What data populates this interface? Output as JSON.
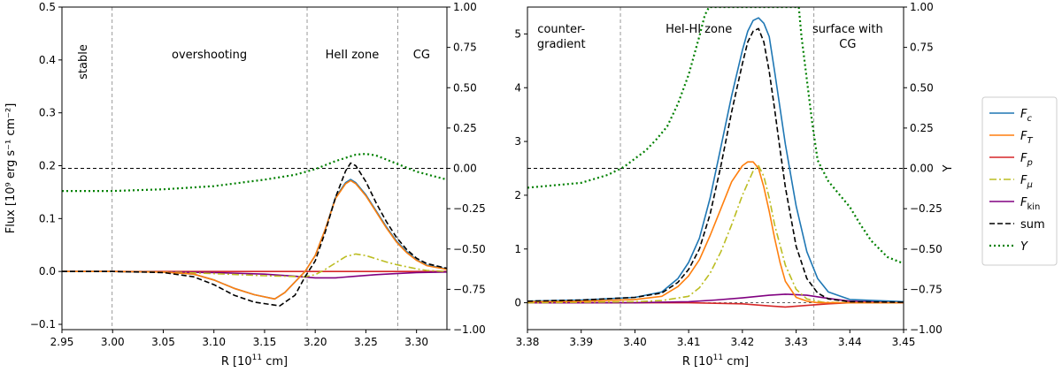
{
  "colors": {
    "Fc": "#1f77b4",
    "FT": "#ff7f0e",
    "Fp": "#d62728",
    "Fmu": "#bcbd22",
    "Fkin": "#800080",
    "sum": "#000000",
    "Y": "#008000",
    "guide": "#999999"
  },
  "legend": {
    "entries": [
      {
        "key": "Fc",
        "main": "F",
        "sub": "c",
        "style": "solid"
      },
      {
        "key": "FT",
        "main": "F",
        "sub": "T",
        "style": "solid"
      },
      {
        "key": "Fp",
        "main": "F",
        "sub": "p",
        "style": "solid"
      },
      {
        "key": "Fmu",
        "main": "F",
        "sub": "μ",
        "style": "dashdot"
      },
      {
        "key": "Fkin",
        "main": "F",
        "sub": "kin",
        "style": "solid"
      },
      {
        "key": "sum",
        "main": "sum",
        "sub": "",
        "style": "dashed"
      },
      {
        "key": "Y",
        "main": "Y",
        "sub": "",
        "style": "dotted"
      }
    ]
  },
  "chart_data": [
    {
      "type": "line",
      "panel": "left",
      "xlabel_main": "R [10",
      "xlabel_sup": "11",
      "xlabel_tail": " cm]",
      "ylabel": "Flux [10⁹ erg s⁻¹ cm⁻²]",
      "xlim": [
        2.95,
        3.33
      ],
      "ylim": [
        -0.11,
        0.5
      ],
      "y2lim": [
        -1.0,
        1.0
      ],
      "xticks": [
        2.95,
        3.0,
        3.05,
        3.1,
        3.15,
        3.2,
        3.25,
        3.3
      ],
      "xtick_labels": [
        "2.95",
        "3.00",
        "3.05",
        "3.10",
        "3.15",
        "3.20",
        "3.25",
        "3.30"
      ],
      "yticks": [
        -0.1,
        0.0,
        0.1,
        0.2,
        0.3,
        0.4,
        0.5
      ],
      "ytick_labels": [
        "−0.1",
        "0.0",
        "0.1",
        "0.2",
        "0.3",
        "0.4",
        "0.5"
      ],
      "y2ticks": [
        -1.0,
        -0.75,
        -0.5,
        -0.25,
        0.0,
        0.25,
        0.5,
        0.75,
        1.0
      ],
      "y2tick_labels": [
        "−1.00",
        "−0.75",
        "−0.50",
        "−0.25",
        "0.00",
        "0.25",
        "0.50",
        "0.75",
        "1.00"
      ],
      "vlines": [
        2.9995,
        3.192,
        3.2815
      ],
      "zones": [
        {
          "label": "stable",
          "x": 2.9745,
          "rotated": true
        },
        {
          "label": "overshooting",
          "x": 3.0955,
          "rotated": false
        },
        {
          "label": "HeII zone",
          "x": 3.2365,
          "rotated": false
        },
        {
          "label": "CG",
          "x": 3.305,
          "rotated": false
        }
      ],
      "series": [
        {
          "name": "Fc",
          "axis": "left",
          "x": [
            2.95,
            3.0,
            3.05,
            3.08,
            3.1,
            3.12,
            3.14,
            3.16,
            3.17,
            3.18,
            3.19,
            3.2,
            3.21,
            3.22,
            3.23,
            3.235,
            3.24,
            3.25,
            3.26,
            3.27,
            3.28,
            3.29,
            3.3,
            3.31,
            3.33
          ],
          "y": [
            0,
            0,
            -0.001,
            -0.005,
            -0.016,
            -0.032,
            -0.044,
            -0.052,
            -0.04,
            -0.02,
            0.0,
            0.03,
            0.08,
            0.14,
            0.168,
            0.174,
            0.168,
            0.145,
            0.115,
            0.085,
            0.058,
            0.038,
            0.022,
            0.012,
            0.005
          ]
        },
        {
          "name": "FT",
          "axis": "left",
          "x": [
            2.95,
            3.0,
            3.05,
            3.08,
            3.1,
            3.12,
            3.14,
            3.16,
            3.17,
            3.18,
            3.19,
            3.2,
            3.21,
            3.22,
            3.23,
            3.235,
            3.24,
            3.25,
            3.26,
            3.27,
            3.28,
            3.29,
            3.3,
            3.31,
            3.33
          ],
          "y": [
            0,
            0,
            -0.001,
            -0.005,
            -0.016,
            -0.032,
            -0.044,
            -0.052,
            -0.04,
            -0.02,
            0.0,
            0.03,
            0.08,
            0.138,
            0.166,
            0.172,
            0.166,
            0.143,
            0.113,
            0.083,
            0.056,
            0.036,
            0.021,
            0.011,
            0.004
          ]
        },
        {
          "name": "Fp",
          "axis": "left",
          "x": [
            2.95,
            3.2,
            3.25,
            3.33
          ],
          "y": [
            0,
            0,
            0,
            0
          ]
        },
        {
          "name": "Fmu",
          "axis": "left",
          "x": [
            2.95,
            3.0,
            3.05,
            3.1,
            3.15,
            3.19,
            3.2,
            3.21,
            3.22,
            3.23,
            3.24,
            3.25,
            3.26,
            3.27,
            3.28,
            3.29,
            3.3,
            3.31,
            3.33
          ],
          "y": [
            0,
            0,
            -0.001,
            -0.004,
            -0.008,
            -0.01,
            -0.006,
            0.004,
            0.016,
            0.028,
            0.033,
            0.03,
            0.024,
            0.018,
            0.013,
            0.009,
            0.005,
            0.002,
            0.0
          ]
        },
        {
          "name": "Fkin",
          "axis": "left",
          "x": [
            2.95,
            3.0,
            3.05,
            3.1,
            3.15,
            3.18,
            3.2,
            3.22,
            3.24,
            3.26,
            3.28,
            3.3,
            3.33
          ],
          "y": [
            0,
            0,
            -0.001,
            -0.002,
            -0.005,
            -0.009,
            -0.012,
            -0.012,
            -0.009,
            -0.006,
            -0.004,
            -0.002,
            -0.001
          ]
        },
        {
          "name": "sum",
          "axis": "left",
          "x": [
            2.95,
            3.0,
            3.05,
            3.08,
            3.1,
            3.12,
            3.14,
            3.165,
            3.18,
            3.19,
            3.2,
            3.21,
            3.22,
            3.23,
            3.235,
            3.24,
            3.25,
            3.26,
            3.27,
            3.28,
            3.29,
            3.3,
            3.31,
            3.33
          ],
          "y": [
            0,
            0,
            -0.002,
            -0.01,
            -0.025,
            -0.045,
            -0.058,
            -0.065,
            -0.045,
            -0.01,
            0.02,
            0.075,
            0.14,
            0.19,
            0.205,
            0.2,
            0.17,
            0.13,
            0.095,
            0.065,
            0.042,
            0.025,
            0.015,
            0.006
          ]
        },
        {
          "name": "Y",
          "axis": "right",
          "x": [
            2.95,
            3.0,
            3.05,
            3.1,
            3.15,
            3.18,
            3.2,
            3.22,
            3.24,
            3.25,
            3.26,
            3.28,
            3.3,
            3.33
          ],
          "y": [
            -0.14,
            -0.14,
            -0.13,
            -0.11,
            -0.07,
            -0.04,
            -0.005,
            0.045,
            0.085,
            0.09,
            0.08,
            0.03,
            -0.02,
            -0.07
          ]
        }
      ]
    },
    {
      "type": "line",
      "panel": "right",
      "xlabel_main": "R [10",
      "xlabel_sup": "11",
      "xlabel_tail": " cm]",
      "y2label": "Y",
      "xlim": [
        3.38,
        3.45
      ],
      "ylim": [
        -0.5,
        5.5
      ],
      "y2lim": [
        -1.0,
        1.0
      ],
      "xticks": [
        3.38,
        3.39,
        3.4,
        3.41,
        3.42,
        3.43,
        3.44,
        3.45
      ],
      "xtick_labels": [
        "3.38",
        "3.39",
        "3.40",
        "3.41",
        "3.42",
        "3.43",
        "3.44",
        "3.45"
      ],
      "yticks": [
        0,
        1,
        2,
        3,
        4,
        5
      ],
      "ytick_labels": [
        "0",
        "1",
        "2",
        "3",
        "4",
        "5"
      ],
      "y2ticks": [
        -1.0,
        -0.75,
        -0.5,
        -0.25,
        0.0,
        0.25,
        0.5,
        0.75,
        1.0
      ],
      "y2tick_labels": [
        "−1.00",
        "−0.75",
        "−0.50",
        "−0.25",
        "0.00",
        "0.25",
        "0.50",
        "0.75",
        "1.00"
      ],
      "vlines": [
        3.3973,
        3.4333
      ],
      "zones": [
        {
          "lines": [
            "counter-",
            "gradient"
          ],
          "x": 3.3863
        },
        {
          "lines": [
            "HeI-HI zone"
          ],
          "x": 3.4119
        },
        {
          "lines": [
            "surface with",
            "CG"
          ],
          "x": 3.4396
        }
      ],
      "series": [
        {
          "name": "Fc",
          "axis": "left",
          "x": [
            3.38,
            3.39,
            3.4,
            3.405,
            3.408,
            3.41,
            3.412,
            3.414,
            3.416,
            3.418,
            3.42,
            3.421,
            3.422,
            3.423,
            3.424,
            3.425,
            3.426,
            3.428,
            3.43,
            3.432,
            3.434,
            3.436,
            3.44,
            3.45
          ],
          "y": [
            0.03,
            0.05,
            0.1,
            0.2,
            0.45,
            0.75,
            1.2,
            1.95,
            2.9,
            3.85,
            4.7,
            5.05,
            5.25,
            5.3,
            5.2,
            4.95,
            4.3,
            2.95,
            1.8,
            0.95,
            0.45,
            0.2,
            0.06,
            0.02
          ]
        },
        {
          "name": "FT",
          "axis": "left",
          "x": [
            3.38,
            3.39,
            3.4,
            3.405,
            3.408,
            3.41,
            3.412,
            3.414,
            3.416,
            3.418,
            3.42,
            3.421,
            3.422,
            3.423,
            3.424,
            3.425,
            3.426,
            3.427,
            3.428,
            3.43,
            3.432,
            3.434,
            3.44,
            3.45
          ],
          "y": [
            0.02,
            0.03,
            0.06,
            0.12,
            0.3,
            0.5,
            0.8,
            1.25,
            1.75,
            2.25,
            2.55,
            2.62,
            2.62,
            2.5,
            2.15,
            1.7,
            1.2,
            0.75,
            0.4,
            0.1,
            0.03,
            0.0,
            0.0,
            0.0
          ]
        },
        {
          "name": "Fp",
          "axis": "left",
          "x": [
            3.38,
            3.41,
            3.42,
            3.425,
            3.428,
            3.432,
            3.436,
            3.44,
            3.45
          ],
          "y": [
            0.0,
            0.0,
            -0.02,
            -0.06,
            -0.08,
            -0.05,
            -0.02,
            0.0,
            0.0
          ]
        },
        {
          "name": "Fmu",
          "axis": "left",
          "x": [
            3.38,
            3.4,
            3.405,
            3.41,
            3.412,
            3.414,
            3.416,
            3.418,
            3.42,
            3.422,
            3.423,
            3.424,
            3.425,
            3.426,
            3.428,
            3.43,
            3.432,
            3.435,
            3.44,
            3.45
          ],
          "y": [
            0.0,
            0.02,
            0.04,
            0.12,
            0.28,
            0.55,
            0.95,
            1.45,
            2.0,
            2.45,
            2.55,
            2.35,
            1.95,
            1.45,
            0.7,
            0.25,
            0.07,
            0.01,
            0.0,
            0.0
          ]
        },
        {
          "name": "Fkin",
          "axis": "left",
          "x": [
            3.38,
            3.4,
            3.41,
            3.415,
            3.42,
            3.425,
            3.428,
            3.432,
            3.436,
            3.44,
            3.45
          ],
          "y": [
            0.0,
            0.0,
            0.02,
            0.05,
            0.09,
            0.14,
            0.16,
            0.14,
            0.08,
            0.03,
            0.0
          ]
        },
        {
          "name": "sum",
          "axis": "left",
          "x": [
            3.38,
            3.39,
            3.4,
            3.405,
            3.408,
            3.41,
            3.412,
            3.414,
            3.416,
            3.418,
            3.42,
            3.421,
            3.422,
            3.423,
            3.424,
            3.425,
            3.426,
            3.427,
            3.428,
            3.43,
            3.432,
            3.434,
            3.436,
            3.44,
            3.45
          ],
          "y": [
            0.03,
            0.05,
            0.1,
            0.18,
            0.38,
            0.62,
            1.0,
            1.65,
            2.55,
            3.55,
            4.45,
            4.85,
            5.05,
            5.1,
            4.85,
            4.3,
            3.6,
            2.85,
            2.15,
            1.05,
            0.45,
            0.18,
            0.07,
            0.02,
            0.01
          ]
        },
        {
          "name": "Y",
          "axis": "right",
          "x": [
            3.38,
            3.39,
            3.395,
            3.398,
            3.4,
            3.402,
            3.404,
            3.406,
            3.408,
            3.41,
            3.412,
            3.413,
            3.4138,
            3.4305,
            3.431,
            3.432,
            3.433,
            3.434,
            3.436,
            3.438,
            3.44,
            3.442,
            3.444,
            3.447,
            3.45
          ],
          "y": [
            -0.12,
            -0.09,
            -0.04,
            0.01,
            0.06,
            0.11,
            0.18,
            0.26,
            0.4,
            0.58,
            0.82,
            0.95,
            1.0,
            1.0,
            0.82,
            0.55,
            0.28,
            0.05,
            -0.08,
            -0.16,
            -0.24,
            -0.35,
            -0.45,
            -0.55,
            -0.59
          ]
        }
      ]
    }
  ]
}
